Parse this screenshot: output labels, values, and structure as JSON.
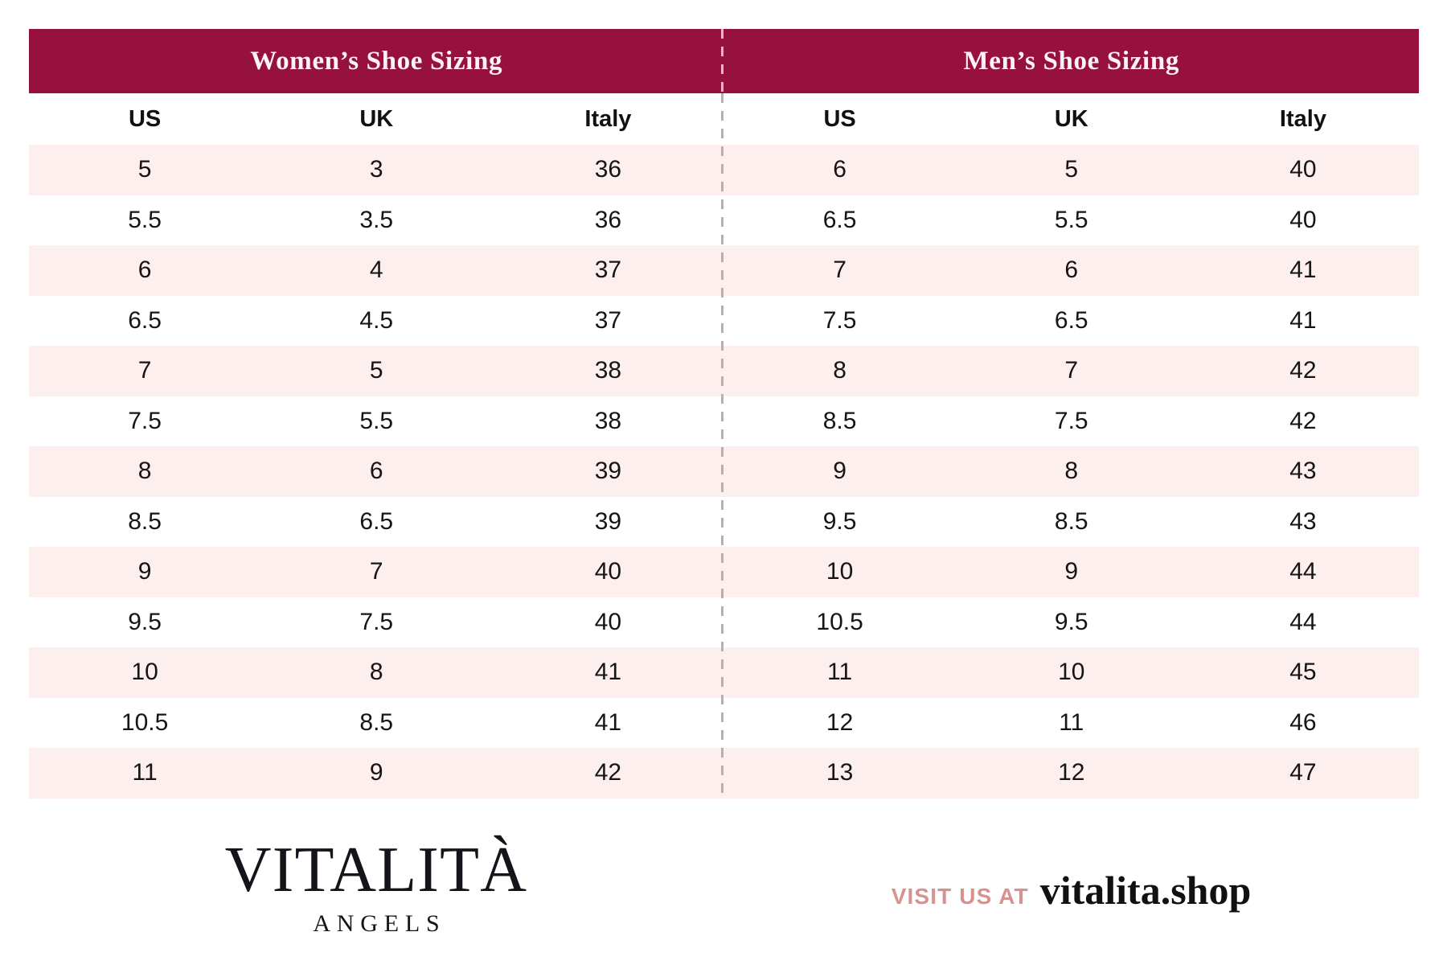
{
  "header": {
    "women_title": "Women’s Shoe Sizing",
    "men_title": "Men’s Shoe Sizing"
  },
  "columns": {
    "women": [
      "US",
      "UK",
      "Italy"
    ],
    "men": [
      "US",
      "UK",
      "Italy"
    ]
  },
  "rows": [
    {
      "women": [
        "5",
        "3",
        "36"
      ],
      "men": [
        "6",
        "5",
        "40"
      ]
    },
    {
      "women": [
        "5.5",
        "3.5",
        "36"
      ],
      "men": [
        "6.5",
        "5.5",
        "40"
      ]
    },
    {
      "women": [
        "6",
        "4",
        "37"
      ],
      "men": [
        "7",
        "6",
        "41"
      ]
    },
    {
      "women": [
        "6.5",
        "4.5",
        "37"
      ],
      "men": [
        "7.5",
        "6.5",
        "41"
      ]
    },
    {
      "women": [
        "7",
        "5",
        "38"
      ],
      "men": [
        "8",
        "7",
        "42"
      ]
    },
    {
      "women": [
        "7.5",
        "5.5",
        "38"
      ],
      "men": [
        "8.5",
        "7.5",
        "42"
      ]
    },
    {
      "women": [
        "8",
        "6",
        "39"
      ],
      "men": [
        "9",
        "8",
        "43"
      ]
    },
    {
      "women": [
        "8.5",
        "6.5",
        "39"
      ],
      "men": [
        "9.5",
        "8.5",
        "43"
      ]
    },
    {
      "women": [
        "9",
        "7",
        "40"
      ],
      "men": [
        "10",
        "9",
        "44"
      ]
    },
    {
      "women": [
        "9.5",
        "7.5",
        "40"
      ],
      "men": [
        "10.5",
        "9.5",
        "44"
      ]
    },
    {
      "women": [
        "10",
        "8",
        "41"
      ],
      "men": [
        "11",
        "10",
        "45"
      ]
    },
    {
      "women": [
        "10.5",
        "8.5",
        "41"
      ],
      "men": [
        "12",
        "11",
        "46"
      ]
    },
    {
      "women": [
        "11",
        "9",
        "42"
      ],
      "men": [
        "13",
        "12",
        "47"
      ]
    }
  ],
  "footer": {
    "brand": "VITALITÀ",
    "brand_sub": "ANGELS",
    "visit_prefix": "VISIT US AT",
    "visit_site": "vitalita.shop"
  },
  "colors": {
    "header_bar": "#96113e",
    "row_stripe_pink": "#fcefee",
    "divider_dash_gray": "#b8afb1",
    "visit_label_pink": "#d9918e",
    "text": "#151515"
  }
}
